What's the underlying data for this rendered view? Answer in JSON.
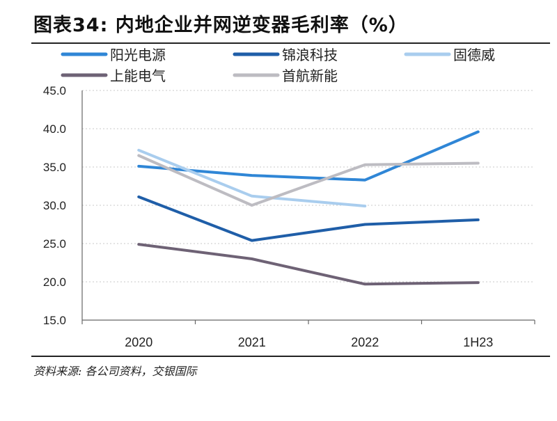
{
  "chart_data": {
    "type": "line",
    "title": "图表34: 内地企业并网逆变器毛利率（%）",
    "source": "资料来源: 各公司资料，交银国际",
    "categories": [
      "2020",
      "2021",
      "2022",
      "1H23"
    ],
    "ylim": [
      15,
      45
    ],
    "yticks": [
      "15.0",
      "20.0",
      "25.0",
      "30.0",
      "35.0",
      "40.0",
      "45.0"
    ],
    "grid": "horizontal dotted",
    "legend": "top",
    "series": [
      {
        "name": "阳光电源",
        "color": "#2f86d6",
        "values": [
          35.1,
          33.9,
          33.3,
          39.6
        ]
      },
      {
        "name": "锦浪科技",
        "color": "#1f5ea8",
        "values": [
          31.1,
          25.4,
          27.5,
          28.1
        ]
      },
      {
        "name": "固德威",
        "color": "#a9cdee",
        "values": [
          37.2,
          31.2,
          29.9,
          null
        ]
      },
      {
        "name": "上能电气",
        "color": "#6e6275",
        "values": [
          24.9,
          23.0,
          19.7,
          19.9
        ]
      },
      {
        "name": "首航新能",
        "color": "#bdbcc2",
        "values": [
          36.5,
          30.0,
          35.3,
          35.5
        ]
      }
    ]
  }
}
